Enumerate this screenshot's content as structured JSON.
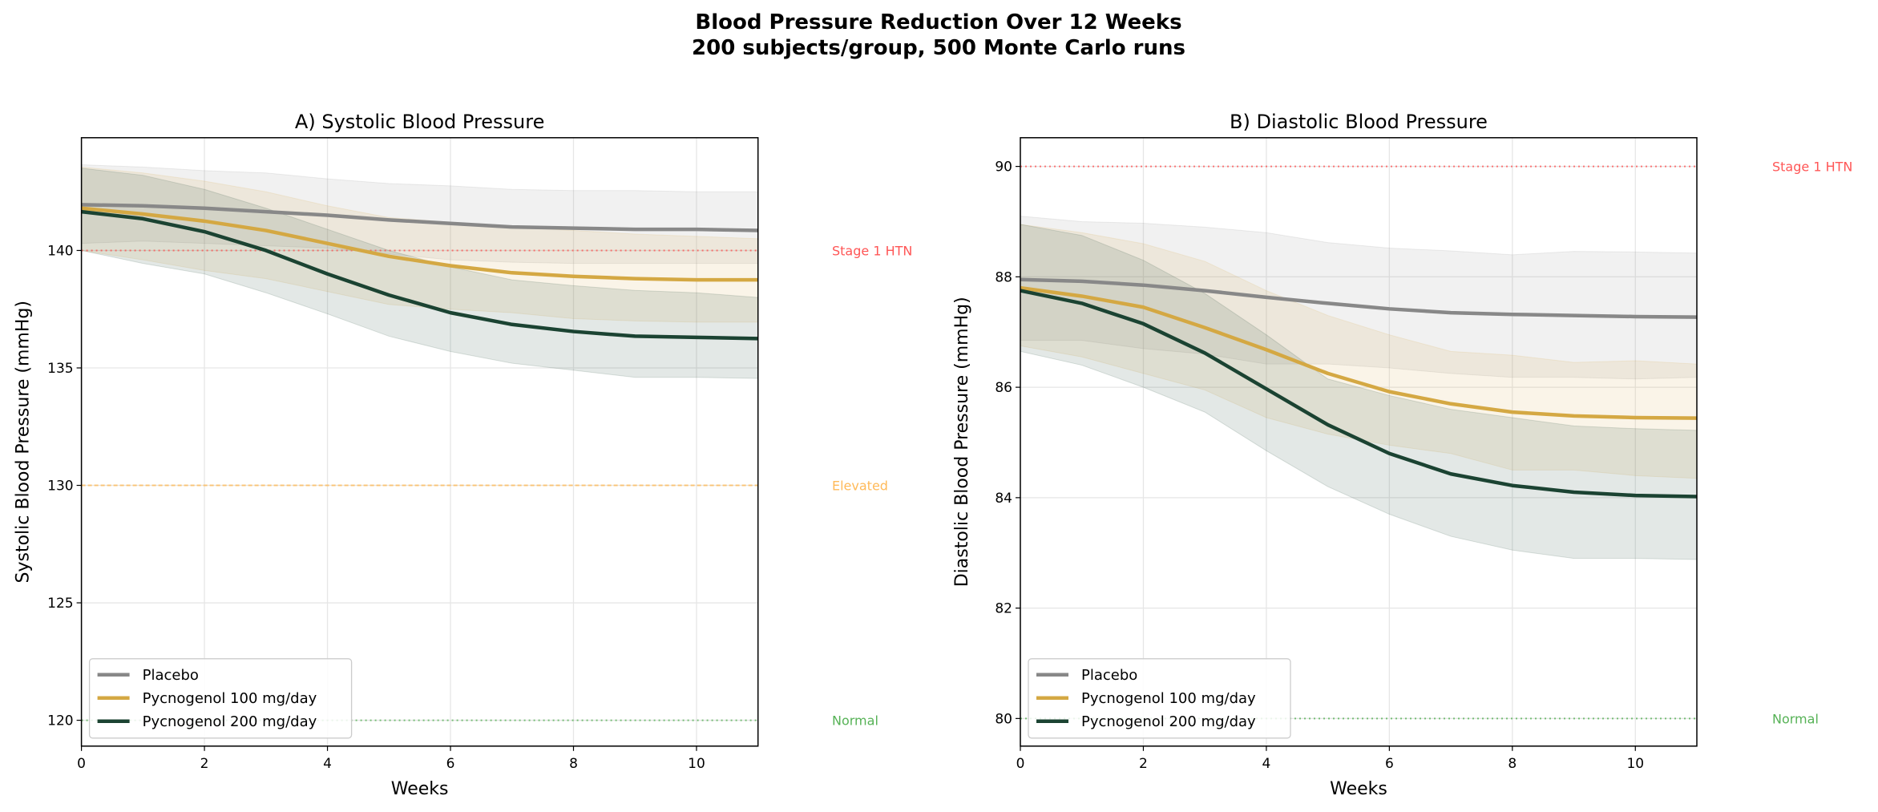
{
  "suptitle": [
    "Blood Pressure Reduction Over 12 Weeks",
    "200 subjects/group, 500 Monte Carlo runs"
  ],
  "colors": {
    "placebo": "#888888",
    "pyc100": "#d4a843",
    "pyc200": "#1b4332",
    "stage1": "#ff4444",
    "elevated": "#ffb347",
    "normal": "#44aa44"
  },
  "chart_data": [
    {
      "type": "line",
      "title": "A) Systolic Blood Pressure",
      "xlabel": "Weeks",
      "ylabel": "Systolic Blood Pressure (mmHg)",
      "xlim": [
        0,
        11
      ],
      "ylim": [
        118.9,
        144.8
      ],
      "xticks": [
        0,
        2,
        4,
        6,
        8,
        10
      ],
      "yticks": [
        120,
        125,
        130,
        135,
        140
      ],
      "grid": true,
      "legend": "lower-left",
      "x": [
        0,
        1,
        2,
        3,
        4,
        5,
        6,
        7,
        8,
        9,
        10,
        11
      ],
      "series": [
        {
          "name": "Placebo",
          "color": "#888888",
          "values": [
            141.95,
            141.9,
            141.8,
            141.65,
            141.5,
            141.3,
            141.15,
            141.0,
            140.95,
            140.9,
            140.9,
            140.85
          ],
          "upper": [
            143.65,
            143.55,
            143.4,
            143.3,
            143.05,
            142.85,
            142.75,
            142.6,
            142.55,
            142.55,
            142.5,
            142.5
          ],
          "lower": [
            140.3,
            140.4,
            140.3,
            140.2,
            140.1,
            139.85,
            139.6,
            139.5,
            139.45,
            139.45,
            139.45,
            139.45
          ]
        },
        {
          "name": "Pycnogenol 100 mg/day",
          "color": "#d4a843",
          "values": [
            141.8,
            141.55,
            141.25,
            140.85,
            140.3,
            139.75,
            139.35,
            139.05,
            138.9,
            138.8,
            138.75,
            138.75
          ],
          "upper": [
            143.55,
            143.3,
            142.95,
            142.5,
            141.9,
            141.4,
            141.2,
            141.0,
            140.85,
            140.7,
            140.6,
            140.5
          ],
          "lower": [
            140.0,
            139.6,
            139.15,
            138.8,
            138.25,
            137.7,
            137.5,
            137.35,
            137.1,
            137.0,
            136.95,
            136.95
          ]
        },
        {
          "name": "Pycnogenol 200 mg/day",
          "color": "#1b4332",
          "values": [
            141.65,
            141.35,
            140.8,
            140.0,
            139.0,
            138.1,
            137.35,
            136.85,
            136.55,
            136.35,
            136.3,
            136.25
          ],
          "upper": [
            143.5,
            143.2,
            142.6,
            141.8,
            140.9,
            140.0,
            139.3,
            138.75,
            138.5,
            138.3,
            138.2,
            138.0
          ],
          "lower": [
            140.0,
            139.45,
            139.0,
            138.2,
            137.3,
            136.35,
            135.7,
            135.2,
            134.9,
            134.6,
            134.6,
            134.55
          ]
        }
      ],
      "thresholds": [
        {
          "label": "Stage 1 HTN",
          "value": 140,
          "color": "#ff4444",
          "style": "dotted"
        },
        {
          "label": "Elevated",
          "value": 130,
          "color": "#ffb347",
          "style": "dashed"
        },
        {
          "label": "Normal",
          "value": 120,
          "color": "#44aa44",
          "style": "dotted"
        }
      ]
    },
    {
      "type": "line",
      "title": "B) Diastolic Blood Pressure",
      "xlabel": "Weeks",
      "ylabel": "Diastolic Blood Pressure (mmHg)",
      "xlim": [
        0,
        11
      ],
      "ylim": [
        79.5,
        90.52
      ],
      "xticks": [
        0,
        2,
        4,
        6,
        8,
        10
      ],
      "yticks": [
        80,
        82,
        84,
        86,
        88,
        90
      ],
      "grid": true,
      "legend": "lower-left",
      "x": [
        0,
        1,
        2,
        3,
        4,
        5,
        6,
        7,
        8,
        9,
        10,
        11
      ],
      "series": [
        {
          "name": "Placebo",
          "color": "#888888",
          "values": [
            87.95,
            87.92,
            87.85,
            87.75,
            87.63,
            87.52,
            87.42,
            87.35,
            87.32,
            87.3,
            87.28,
            87.27
          ],
          "upper": [
            89.1,
            89.0,
            88.97,
            88.9,
            88.8,
            88.62,
            88.52,
            88.47,
            88.4,
            88.46,
            88.45,
            88.43
          ],
          "lower": [
            86.85,
            86.85,
            86.7,
            86.6,
            86.42,
            86.42,
            86.35,
            86.25,
            86.18,
            86.18,
            86.15,
            86.18
          ]
        },
        {
          "name": "Pycnogenol 100 mg/day",
          "color": "#d4a843",
          "values": [
            87.8,
            87.65,
            87.45,
            87.08,
            86.68,
            86.25,
            85.92,
            85.7,
            85.55,
            85.48,
            85.45,
            85.44
          ],
          "upper": [
            88.95,
            88.8,
            88.6,
            88.28,
            87.75,
            87.3,
            86.95,
            86.65,
            86.58,
            86.45,
            86.48,
            86.42
          ],
          "lower": [
            86.75,
            86.55,
            86.25,
            85.95,
            85.45,
            85.15,
            84.95,
            84.8,
            84.5,
            84.5,
            84.4,
            84.35
          ]
        },
        {
          "name": "Pycnogenol 200 mg/day",
          "color": "#1b4332",
          "values": [
            87.75,
            87.52,
            87.15,
            86.62,
            85.97,
            85.32,
            84.8,
            84.43,
            84.22,
            84.1,
            84.04,
            84.02
          ],
          "upper": [
            88.95,
            88.75,
            88.3,
            87.7,
            86.95,
            86.15,
            85.85,
            85.6,
            85.45,
            85.3,
            85.25,
            85.22
          ],
          "lower": [
            86.65,
            86.4,
            86.0,
            85.55,
            84.85,
            84.2,
            83.7,
            83.3,
            83.05,
            82.9,
            82.9,
            82.88
          ]
        }
      ],
      "thresholds": [
        {
          "label": "Stage 1 HTN",
          "value": 90,
          "color": "#ff4444",
          "style": "dotted"
        },
        {
          "label": "Normal",
          "value": 80,
          "color": "#44aa44",
          "style": "dotted"
        }
      ]
    }
  ]
}
